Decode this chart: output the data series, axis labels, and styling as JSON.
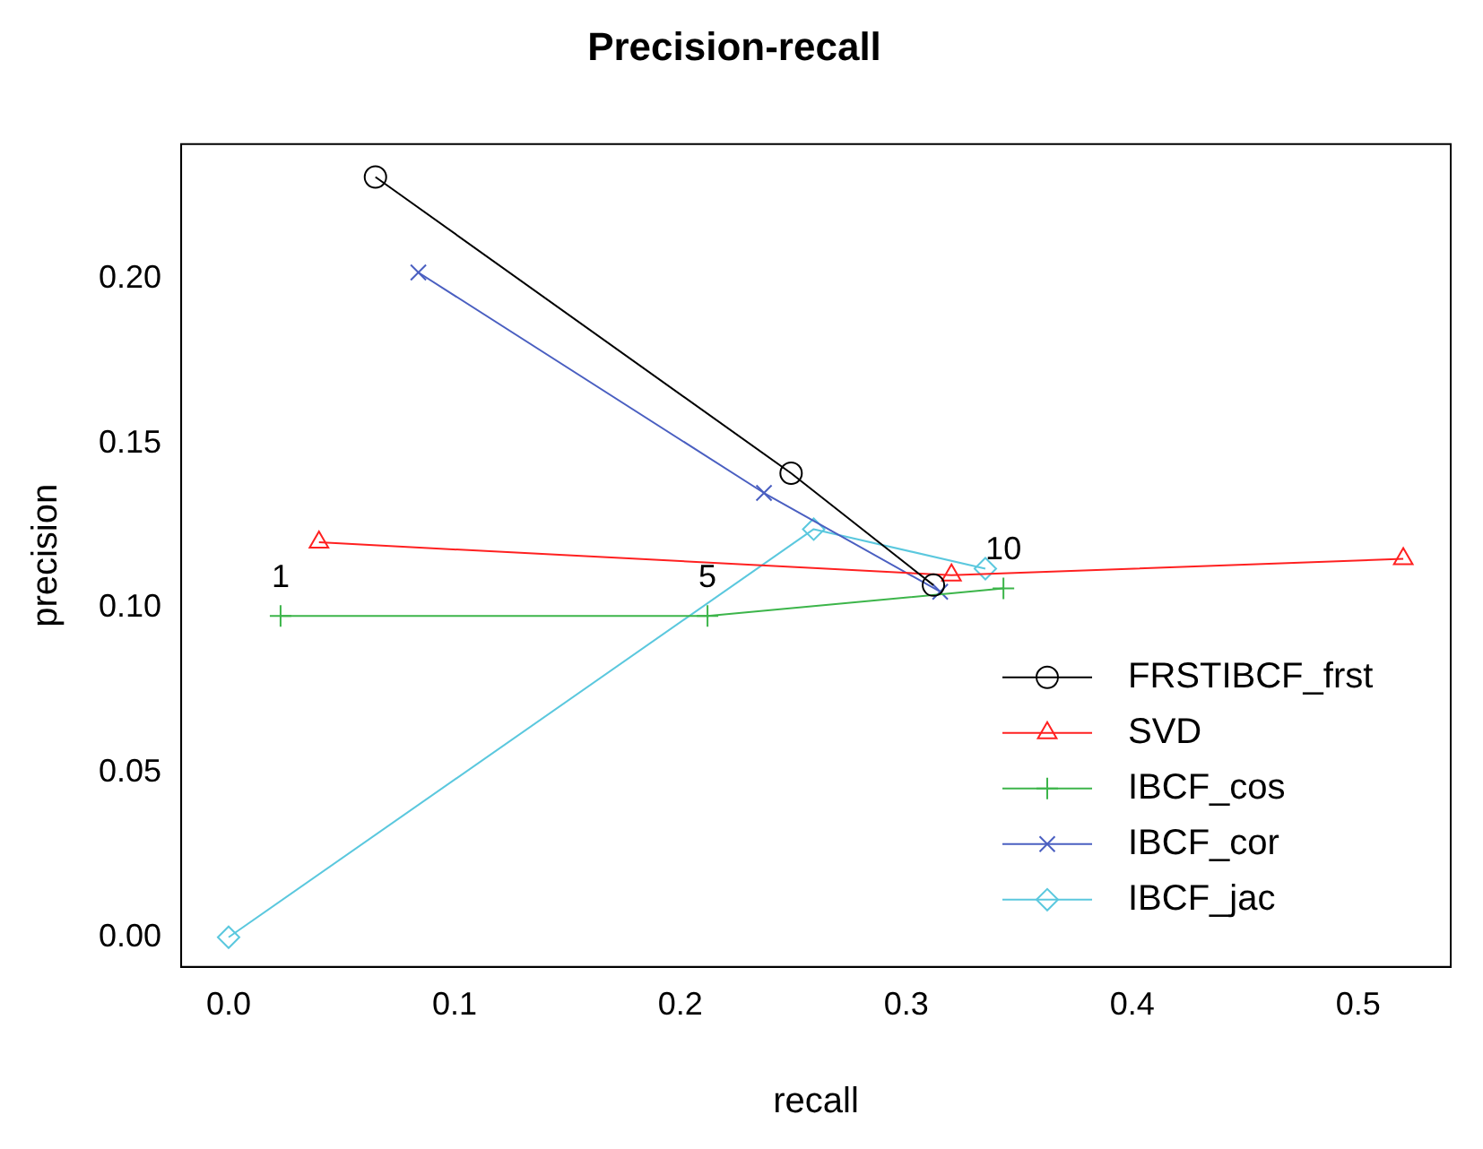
{
  "chart_data": {
    "type": "line",
    "title": "Precision-recall",
    "xlabel": "recall",
    "ylabel": "precision",
    "xlim": [
      -0.021,
      0.541
    ],
    "ylim": [
      -0.009,
      0.241
    ],
    "xticks": [
      {
        "value": 0,
        "label": "0.0"
      },
      {
        "value": 0.1,
        "label": "0.1"
      },
      {
        "value": 0.2,
        "label": "0.2"
      },
      {
        "value": 0.3,
        "label": "0.3"
      },
      {
        "value": 0.4,
        "label": "0.4"
      },
      {
        "value": 0.5,
        "label": "0.5"
      }
    ],
    "yticks": [
      {
        "value": 0,
        "label": "0.00"
      },
      {
        "value": 0.05,
        "label": "0.05"
      },
      {
        "value": 0.1,
        "label": "0.10"
      },
      {
        "value": 0.15,
        "label": "0.15"
      },
      {
        "value": 0.2,
        "label": "0.20"
      }
    ],
    "grid": false,
    "legend": "bottom right",
    "series": [
      {
        "name": "FRSTIBCF_frst",
        "color": "#000000",
        "marker": "circle",
        "x": [
          0.065,
          0.249,
          0.312
        ],
        "values": [
          0.231,
          0.141,
          0.107
        ]
      },
      {
        "name": "SVD",
        "color": "#ff2020",
        "marker": "triangle",
        "x": [
          0.04,
          0.32,
          0.52
        ],
        "values": [
          0.12,
          0.11,
          0.115
        ]
      },
      {
        "name": "IBCF_cos",
        "color": "#3cb54a",
        "marker": "cross",
        "x": [
          0.023,
          0.212,
          0.343
        ],
        "values": [
          0.0976,
          0.0976,
          0.106
        ]
      },
      {
        "name": "IBCF_cor",
        "color": "#4a5fc1",
        "marker": "x",
        "x": [
          0.084,
          0.237,
          0.315
        ],
        "values": [
          0.202,
          0.135,
          0.105
        ]
      },
      {
        "name": "IBCF_jac",
        "color": "#5bc8de",
        "marker": "diamond",
        "x": [
          0,
          0.259,
          0.335
        ],
        "values": [
          0,
          0.124,
          0.112
        ]
      }
    ],
    "annotations": [
      {
        "text": "1",
        "x": 0.023,
        "y": 0.0976
      },
      {
        "text": "5",
        "x": 0.212,
        "y": 0.0976
      },
      {
        "text": "10",
        "x": 0.343,
        "y": 0.106
      }
    ]
  }
}
